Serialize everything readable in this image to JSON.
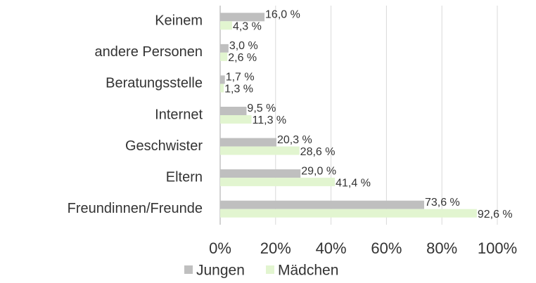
{
  "chart_data": {
    "type": "hbar",
    "categories": [
      "Keinem",
      "andere Personen",
      "Beratungsstelle",
      "Internet",
      "Geschwister",
      "Eltern",
      "Freundinnen/Freunde"
    ],
    "series": [
      {
        "name": "Jungen",
        "color": "#bfbfbf",
        "values": [
          16.0,
          3.0,
          1.7,
          9.5,
          20.3,
          29.0,
          73.6
        ],
        "value_labels": [
          "16,0 %",
          "3,0 %",
          "1,7 %",
          "9,5 %",
          "20,3 %",
          "29,0 %",
          "73,6 %"
        ]
      },
      {
        "name": "Mädchen",
        "color": "#e2f5d0",
        "values": [
          4.3,
          2.6,
          1.3,
          11.3,
          28.6,
          41.4,
          92.6
        ],
        "value_labels": [
          "4,3 %",
          "2,6 %",
          "1,3 %",
          "11,3 %",
          "28,6 %",
          "41,4 %",
          "92,6 %"
        ]
      }
    ],
    "xlim": [
      0,
      100
    ],
    "xticks": [
      {
        "value": 0,
        "label": "0%"
      },
      {
        "value": 20,
        "label": "20%"
      },
      {
        "value": 40,
        "label": "40%"
      },
      {
        "value": 60,
        "label": "60%"
      },
      {
        "value": 80,
        "label": "80%"
      },
      {
        "value": 100,
        "label": "100%"
      }
    ],
    "grid": true,
    "legend": "bottom"
  }
}
